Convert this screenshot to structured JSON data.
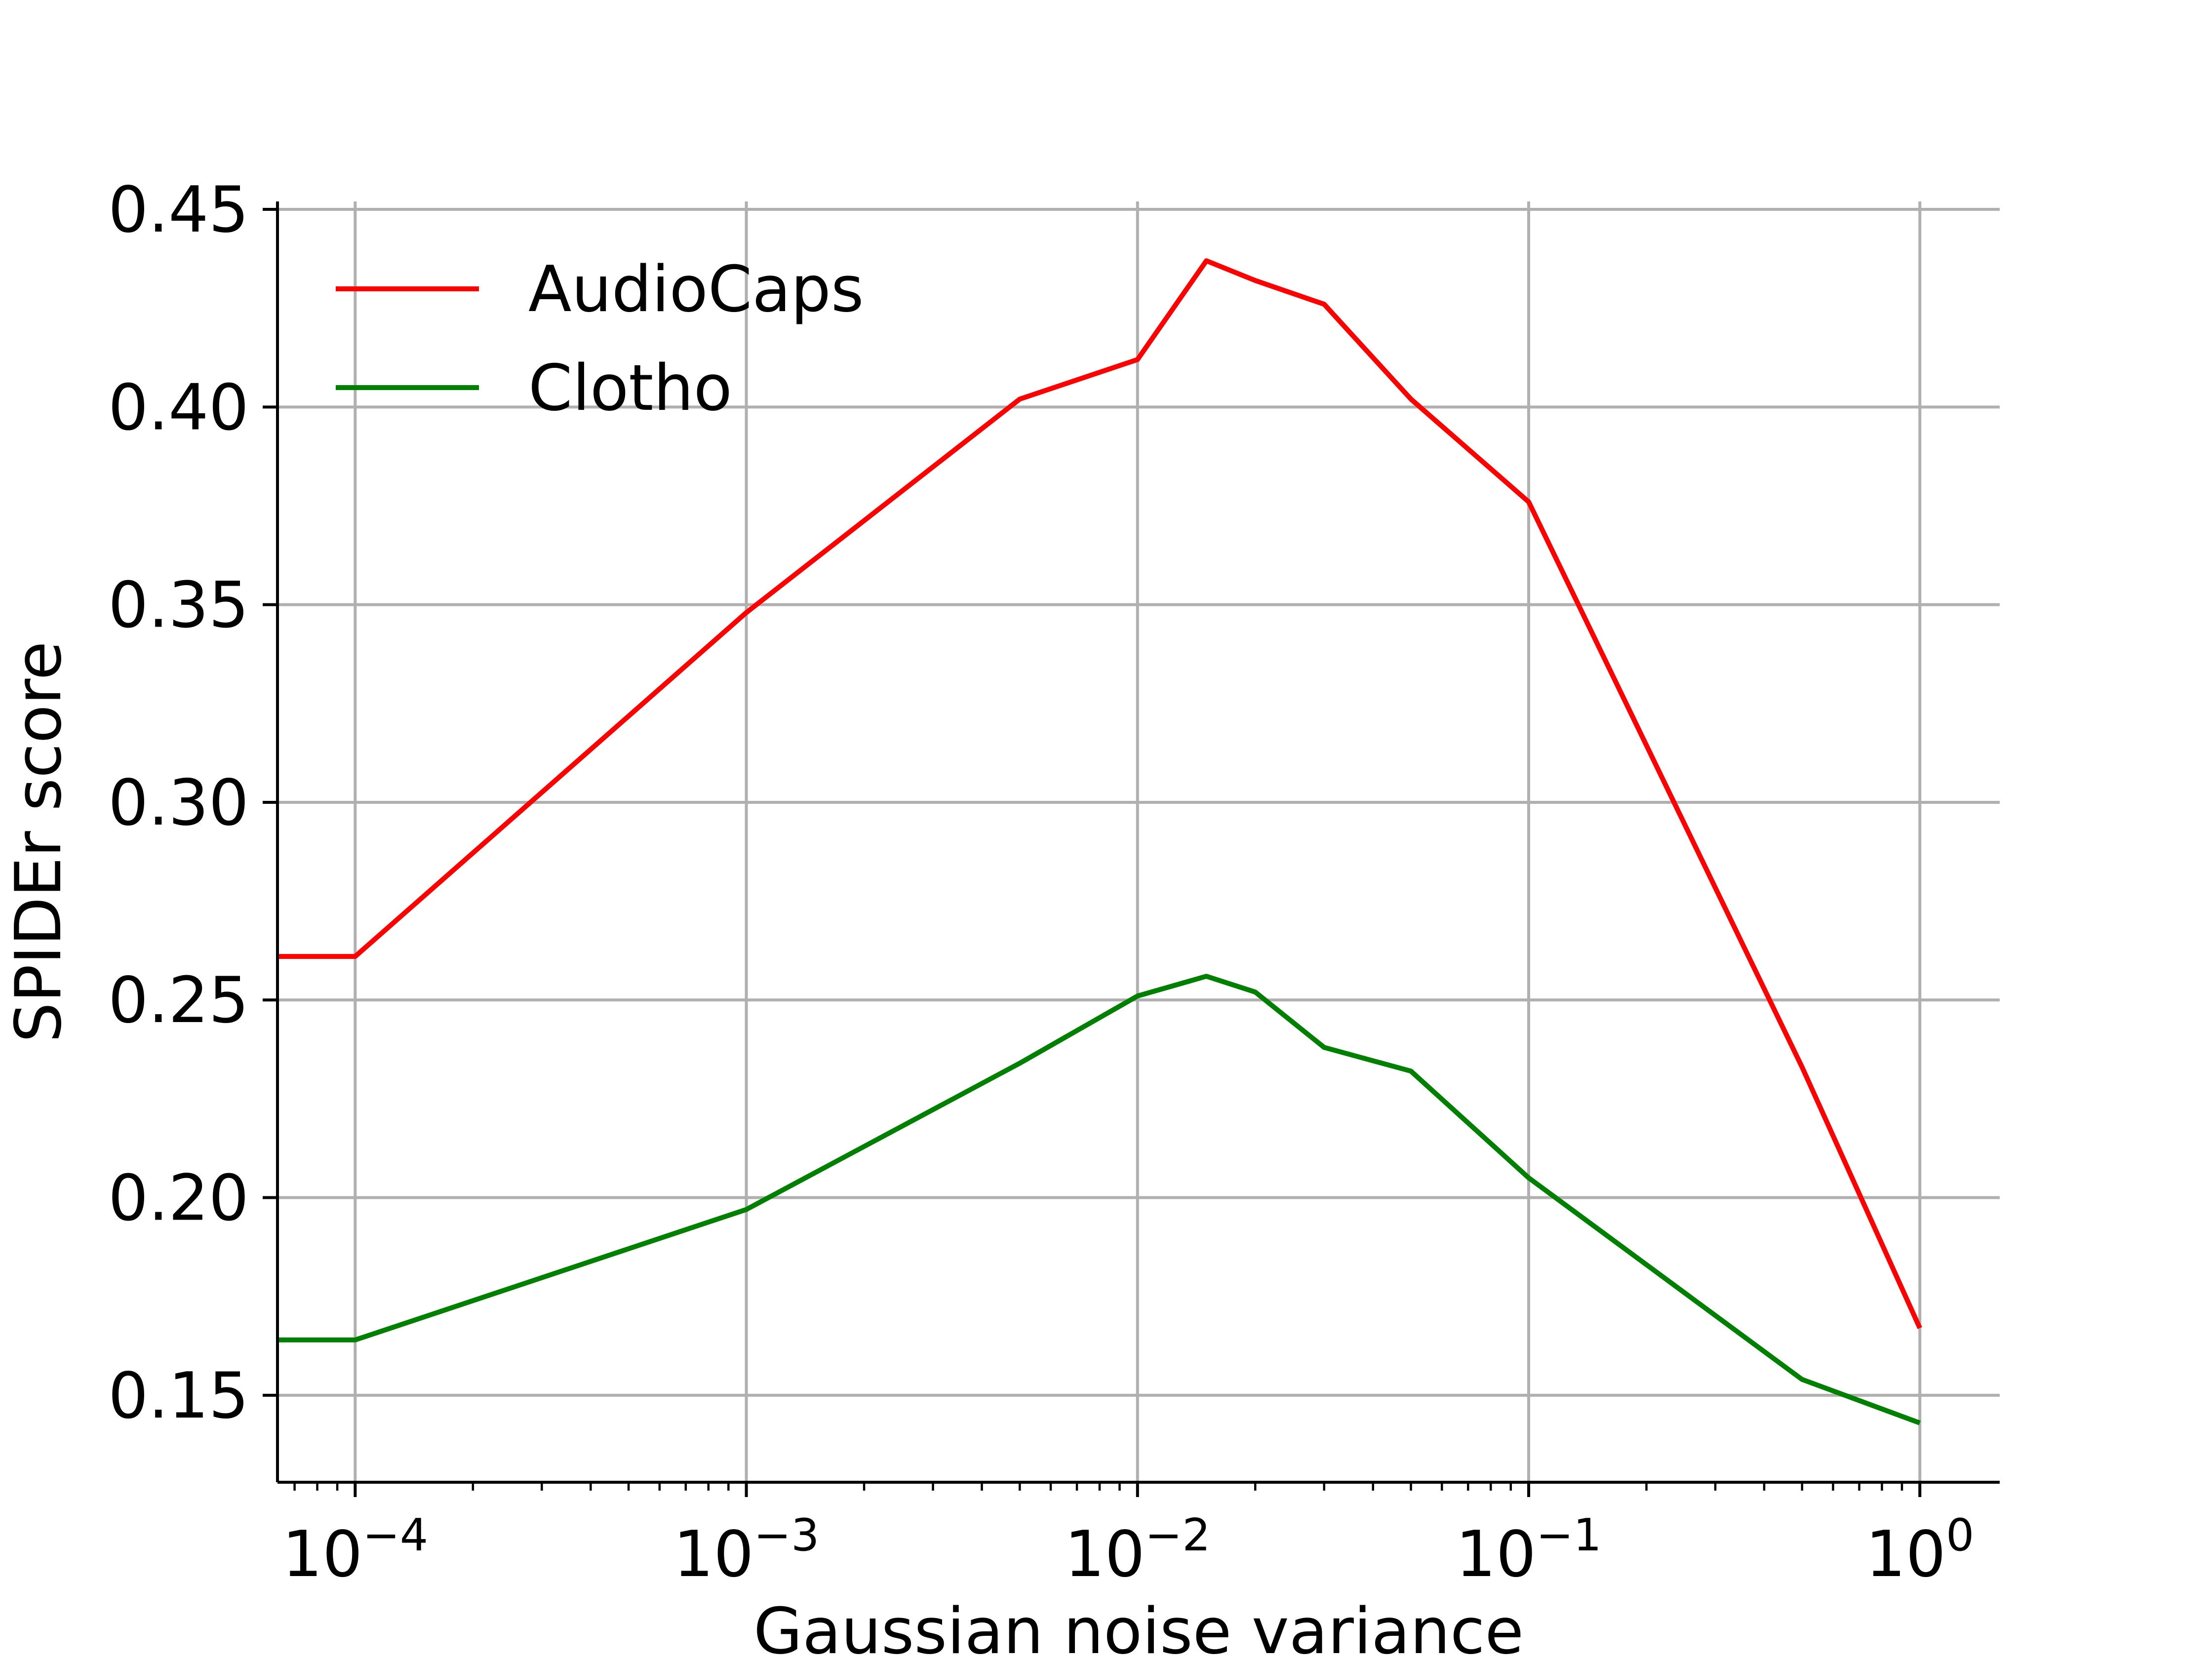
{
  "chart_data": {
    "type": "line",
    "title": "",
    "xlabel": "Gaussian noise variance",
    "ylabel": "SPIDEr score",
    "xscale": "log",
    "xlim": [
      6.33e-05,
      1.6
    ],
    "ylim": [
      0.128,
      0.452
    ],
    "grid": true,
    "legend_position": "top-left",
    "xticks": [
      {
        "value": 0.0001,
        "base": "10",
        "exp": "−4"
      },
      {
        "value": 0.001,
        "base": "10",
        "exp": "−3"
      },
      {
        "value": 0.01,
        "base": "10",
        "exp": "−2"
      },
      {
        "value": 0.1,
        "base": "10",
        "exp": "−1"
      },
      {
        "value": 1,
        "base": "10",
        "exp": "0"
      }
    ],
    "yticks": [
      {
        "value": 0.15,
        "label": "0.15"
      },
      {
        "value": 0.2,
        "label": "0.20"
      },
      {
        "value": 0.25,
        "label": "0.25"
      },
      {
        "value": 0.3,
        "label": "0.30"
      },
      {
        "value": 0.35,
        "label": "0.35"
      },
      {
        "value": 0.4,
        "label": "0.40"
      },
      {
        "value": 0.45,
        "label": "0.45"
      }
    ],
    "series": [
      {
        "name": "AudioCaps",
        "color": "#ff0000",
        "points": [
          [
            6.33e-05,
            0.261
          ],
          [
            0.0001,
            0.261
          ],
          [
            0.001,
            0.348
          ],
          [
            0.005,
            0.402
          ],
          [
            0.01,
            0.412
          ],
          [
            0.015,
            0.437
          ],
          [
            0.02,
            0.432
          ],
          [
            0.03,
            0.426
          ],
          [
            0.05,
            0.402
          ],
          [
            0.1,
            0.376
          ],
          [
            0.5,
            0.233
          ],
          [
            1,
            0.167
          ]
        ]
      },
      {
        "name": "Clotho",
        "color": "#008000",
        "points": [
          [
            6.33e-05,
            0.164
          ],
          [
            0.0001,
            0.164
          ],
          [
            0.001,
            0.197
          ],
          [
            0.005,
            0.234
          ],
          [
            0.01,
            0.251
          ],
          [
            0.015,
            0.256
          ],
          [
            0.02,
            0.252
          ],
          [
            0.03,
            0.238
          ],
          [
            0.05,
            0.232
          ],
          [
            0.1,
            0.205
          ],
          [
            0.5,
            0.154
          ],
          [
            1,
            0.143
          ]
        ]
      }
    ]
  }
}
